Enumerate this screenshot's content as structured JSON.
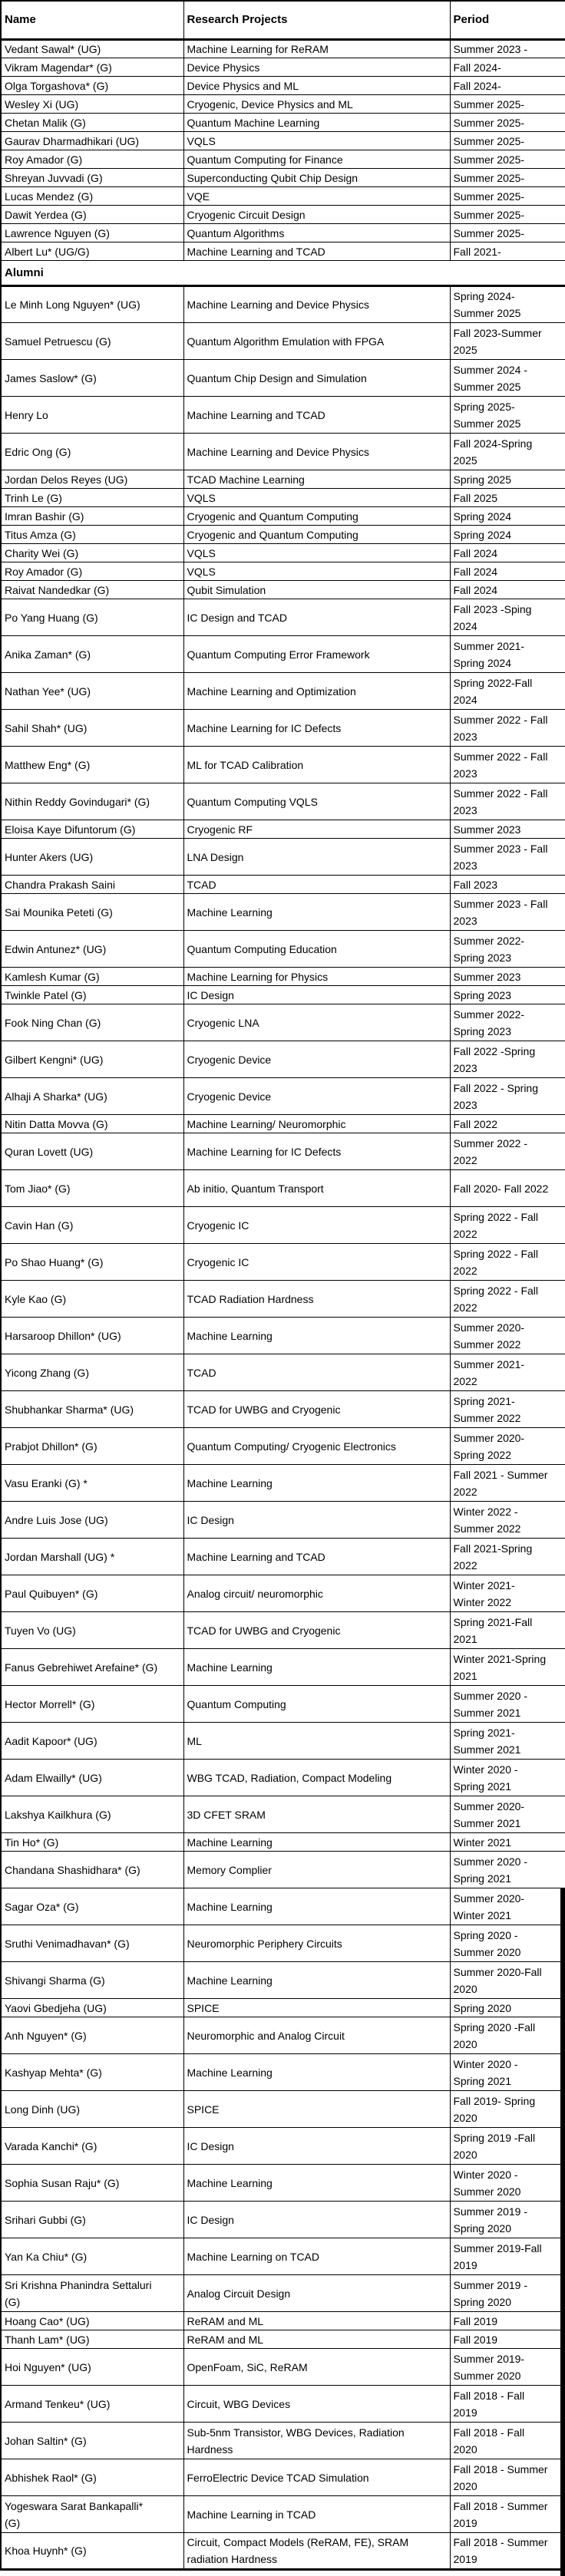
{
  "header": {
    "name": "Name",
    "projects": "Research Projects",
    "period": "Period"
  },
  "section_label": "Alumni",
  "colors": {
    "text": "#000000",
    "muted": "#595959",
    "border": "#000000",
    "edge_bar": "#000000"
  },
  "current_members": [
    {
      "name": "Vedant Sawal* (UG)",
      "project": "Machine Learning for ReRAM",
      "period": "Summer 2023 -"
    },
    {
      "name": "Vikram Magendar* (G)",
      "project": "Device Physics",
      "period": "Fall 2024-"
    },
    {
      "name": "Olga Torgashova* (G)",
      "project": "Device Physics and ML",
      "period": "Fall 2024-"
    },
    {
      "name": "Wesley Xi (UG)",
      "project": "Cryogenic, Device Physics and ML",
      "period": "Summer 2025-"
    },
    {
      "name": "Chetan Malik (G)",
      "project": "Quantum Machine Learning",
      "period": "Summer 2025-"
    },
    {
      "name": "Gaurav Dharmadhikari (UG)",
      "project": "VQLS",
      "period": "Summer 2025-"
    },
    {
      "name": "Roy Amador (G)",
      "project": "Quantum Computing for Finance",
      "period": "Summer 2025-"
    },
    {
      "name": "Shreyan Juvvadi (G)",
      "project": "Superconducting Qubit Chip Design",
      "period": "Summer 2025-"
    },
    {
      "name": "Lucas Mendez (G)",
      "project": "VQE",
      "period": "Summer 2025-"
    },
    {
      "name": "Dawit Yerdea (G)",
      "project": "Cryogenic Circuit Design",
      "period": "Summer 2025-"
    },
    {
      "name": "Lawrence Nguyen (G)",
      "project": "Quantum Algorithms",
      "period": "Summer 2025-"
    },
    {
      "name": "Albert Lu* (UG/G)",
      "project": "Machine Learning and TCAD",
      "period": "Fall 2021-"
    }
  ],
  "alumni": [
    {
      "name": "Le Minh Long Nguyen* (UG)",
      "project": "Machine Learning and Device Physics",
      "period": "Spring 2024-\nSummer 2025",
      "tall": true
    },
    {
      "name": "Samuel Petruescu (G)",
      "project": "Quantum Algorithm Emulation with FPGA",
      "period": "Fall 2023-Summer\n2025",
      "tall": true
    },
    {
      "name": "James Saslow* (G)",
      "project": "Quantum Chip Design and Simulation",
      "period": "Summer 2024 -\nSummer 2025",
      "tall": true
    },
    {
      "name": "Henry Lo",
      "project": "Machine Learning and TCAD",
      "period": "Spring 2025-\nSummer 2025",
      "tall": true
    },
    {
      "name": "Edric Ong (G)",
      "project": "Machine Learning and Device Physics",
      "period": "Fall 2024-Spring\n2025",
      "tall": true
    },
    {
      "name": "Jordan Delos Reyes (UG)",
      "project": "TCAD Machine Learning",
      "period": "Spring 2025"
    },
    {
      "name": "Trinh Le (G)",
      "project": "VQLS",
      "period": "Fall 2025"
    },
    {
      "name": "Imran Bashir (G)",
      "project": "Cryogenic and Quantum Computing",
      "period": "Spring 2024"
    },
    {
      "name": "Titus Amza (G)",
      "project": "Cryogenic and Quantum Computing",
      "period": "Spring 2024"
    },
    {
      "name": "Charity Wei (G)",
      "project": "VQLS",
      "period": "Fall 2024"
    },
    {
      "name": "Roy Amador  (G)",
      "project": "VQLS",
      "period": "Fall 2024"
    },
    {
      "name": "Raivat Nandedkar (G)",
      "project": "Qubit Simulation",
      "period": "Fall 2024"
    },
    {
      "name": "Po Yang Huang (G)",
      "project": "IC Design and TCAD",
      "period": "Fall 2023 -Sping\n2024",
      "tall": true
    },
    {
      "name": "Anika Zaman* (G)",
      "project": "Quantum Computing Error Framework",
      "period": "Summer 2021-\nSpring 2024",
      "tall": true
    },
    {
      "name": "Nathan Yee* (UG)",
      "project": "Machine Learning and Optimization",
      "period": "Spring 2022-Fall\n2024",
      "tall": true
    },
    {
      "name": "Sahil Shah* (UG)",
      "project": "Machine Learning for IC Defects",
      "period": "Summer 2022 - Fall\n2023",
      "tall": true
    },
    {
      "name": "Matthew Eng* (G)",
      "project": "ML for TCAD Calibration",
      "period": "Summer 2022 - Fall\n2023",
      "tall": true
    },
    {
      "name": "Nithin Reddy Govindugari* (G)",
      "project": "Quantum Computing VQLS",
      "period": "Summer 2022 - Fall\n2023",
      "tall": true
    },
    {
      "name": "Eloisa Kaye Difuntorum (G)",
      "project": "Cryogenic RF",
      "period": "Summer 2023"
    },
    {
      "name": "Hunter Akers (UG)",
      "project": "LNA Design",
      "period": "Summer 2023 - Fall\n2023",
      "tall": true
    },
    {
      "name": "Chandra Prakash Saini",
      "project": "TCAD",
      "period": "Fall 2023"
    },
    {
      "name": "Sai Mounika Peteti (G)",
      "project": "Machine Learning",
      "period": "Summer 2023 - Fall\n2023",
      "tall": true
    },
    {
      "name": "Edwin Antunez* (UG)",
      "project": "Quantum Computing Education",
      "period": "Summer 2022-\nSpring 2023",
      "tall": true
    },
    {
      "name": "Kamlesh Kumar (G)",
      "project": "Machine Learning for Physics",
      "period": "Summer 2023"
    },
    {
      "name": "Twinkle Patel (G)",
      "project": "IC Design",
      "period": "Spring 2023"
    },
    {
      "name": "Fook Ning Chan (G)",
      "project": "Cryogenic LNA",
      "period": "Summer 2022-\nSpring 2023",
      "tall": true
    },
    {
      "name": "Gilbert Kengni* (UG)",
      "project": "Cryogenic Device",
      "period": "Fall 2022 -Spring\n2023",
      "tall": true
    },
    {
      "name": "Alhaji A Sharka* (UG)",
      "project": "Cryogenic Device",
      "period": "Fall 2022 - Spring\n2023",
      "tall": true
    },
    {
      "name": "Nitin Datta Movva (G)",
      "project": "Machine Learning/ Neuromorphic",
      "period": "Fall 2022"
    },
    {
      "name": "Quran Lovett (UG)",
      "project": "Machine Learning for IC Defects",
      "period": "Summer 2022 -\n2022",
      "tall": true
    },
    {
      "name": "Tom Jiao* (G)",
      "project": "Ab initio, Quantum Transport",
      "period": "Fall 2020- Fall 2022",
      "tall": true
    },
    {
      "name": "Cavin Han (G)",
      "project": "Cryogenic IC",
      "period": "Spring 2022 - Fall\n2022",
      "tall": true
    },
    {
      "name": "Po Shao Huang* (G)",
      "project": "Cryogenic IC",
      "period": "Spring 2022 - Fall\n2022",
      "tall": true
    },
    {
      "name": "Kyle Kao (G)",
      "project": "TCAD Radiation Hardness",
      "period": "Spring 2022 - Fall\n2022",
      "tall": true
    },
    {
      "name": "Harsaroop Dhillon* (UG)",
      "project": "Machine Learning",
      "period": "Summer 2020-\nSummer 2022",
      "tall": true
    },
    {
      "name": "Yicong Zhang (G)",
      "project": "TCAD",
      "period": "Summer 2021-\n2022",
      "tall": true
    },
    {
      "name": "Shubhankar Sharma* (UG)",
      "project": "TCAD for UWBG and Cryogenic",
      "period": "Spring 2021-\nSummer 2022",
      "tall": true
    },
    {
      "name": "Prabjot Dhillon* (G)",
      "project": "Quantum Computing/ Cryogenic Electronics",
      "period": "Summer 2020-\nSpring 2022",
      "tall": true
    },
    {
      "name": "Vasu Eranki (G) *",
      "project": "Machine Learning",
      "period": "Fall 2021 - Summer\n2022",
      "tall": true
    },
    {
      "name": "Andre Luis Jose (UG)",
      "project": "IC Design",
      "period": "Winter 2022 -\nSummer 2022",
      "tall": true
    },
    {
      "name": "Jordan Marshall (UG) *",
      "project": "Machine Learning and TCAD",
      "period": "Fall 2021-Spring\n2022",
      "tall": true
    },
    {
      "name": "Paul Quibuyen* (G)",
      "project": "Analog circuit/ neuromorphic",
      "period": "Winter 2021-\nWinter 2022",
      "tall": true
    },
    {
      "name": "Tuyen Vo (UG)",
      "project": "TCAD for UWBG and Cryogenic",
      "period": "Spring 2021-Fall\n2021",
      "tall": true
    },
    {
      "name": "Fanus Gebrehiwet Arefaine* (G)",
      "project": "Machine Learning",
      "period": "Winter 2021-Spring\n2021",
      "tall": true
    },
    {
      "name": "Hector Morrell* (G)",
      "project": "Quantum Computing",
      "period": "Summer 2020 -\nSummer 2021",
      "tall": true
    },
    {
      "name": "Aadit Kapoor* (UG)",
      "project": "ML",
      "period": "Spring 2021-\nSummer 2021",
      "tall": true
    },
    {
      "name": "Adam Elwailly* (UG)",
      "project": "WBG TCAD, Radiation, Compact Modeling",
      "period": "Winter 2020 -\nSpring 2021",
      "tall": true
    },
    {
      "name": "Lakshya Kailkhura (G)",
      "project": "3D CFET SRAM",
      "period": "Summer 2020-\nSummer 2021",
      "tall": true
    },
    {
      "name": "Tin Ho* (G)",
      "project": "Machine Learning",
      "period": "Winter 2021"
    },
    {
      "name": "Chandana Shashidhara* (G)",
      "project": "Memory Complier",
      "period": "Summer 2020 -\nSpring 2021",
      "tall": true
    },
    {
      "name": "Sagar Oza* (G)",
      "project": "Machine Learning",
      "period": "Summer 2020-\nWinter 2021",
      "tall": true
    },
    {
      "name": "Sruthi Venimadhavan* (G)",
      "project": "Neuromorphic Periphery Circuits",
      "period": "Spring 2020 -\nSummer 2020",
      "tall": true
    },
    {
      "name": "Shivangi Sharma (G)",
      "project": "Machine Learning",
      "period": "Summer 2020-Fall\n2020",
      "tall": true
    },
    {
      "name": "Yaovi Gbedjeha (UG)",
      "project": "SPICE",
      "period": "Spring 2020"
    },
    {
      "name": "Anh Nguyen* (G)",
      "project": "Neuromorphic and Analog Circuit",
      "period": "Spring 2020 -Fall\n2020",
      "tall": true
    },
    {
      "name": "Kashyap Mehta* (G)",
      "project": "Machine Learning",
      "period": "Winter 2020 -\nSpring 2021",
      "tall": true
    },
    {
      "name": "Long Dinh (UG)",
      "project": "SPICE",
      "period": "Fall 2019- Spring\n2020",
      "tall": true
    },
    {
      "name": "Varada Kanchi* (G)",
      "project": "IC Design",
      "period": "Spring 2019 -Fall\n2020",
      "tall": true
    },
    {
      "name": "Sophia Susan Raju* (G)",
      "project": "Machine Learning",
      "period": "Winter 2020 -\nSummer 2020",
      "tall": true
    },
    {
      "name": "Srihari Gubbi (G)",
      "project": "IC Design",
      "period": "Summer 2019 -\nSpring 2020",
      "tall": true,
      "muted": [
        "name",
        "project",
        "period"
      ]
    },
    {
      "name": "Yan Ka Chiu* (G)",
      "project": "Machine Learning on TCAD",
      "period": "Summer 2019-Fall\n2019",
      "tall": true,
      "muted": [
        "period"
      ]
    },
    {
      "name": "Sri Krishna Phanindra Settaluri\n(G)",
      "project": "Analog Circuit Design",
      "period": "Summer 2019 -\nSpring 2020",
      "tall": true,
      "muted": [
        "period"
      ]
    },
    {
      "name": "Hoang Cao* (UG)",
      "project": "ReRAM and ML",
      "period": "Fall 2019",
      "muted": [
        "name",
        "project"
      ]
    },
    {
      "name": "Thanh Lam* (UG)",
      "project": "ReRAM and ML",
      "period": "Fall 2019",
      "muted": [
        "name",
        "project"
      ]
    },
    {
      "name": "Hoi Nguyen* (UG)",
      "project": "OpenFoam, SiC, ReRAM",
      "period": "Summer 2019-\nSummer 2020",
      "tall": true,
      "muted": [
        "name",
        "project"
      ]
    },
    {
      "name": "Armand Tenkeu* (UG)",
      "project": "Circuit, WBG Devices",
      "period": "Fall 2018 - Fall\n2019",
      "tall": true
    },
    {
      "name": "Johan Saltin* (G)",
      "project": "Sub-5nm Transistor, WBG Devices, Radiation\nHardness",
      "period": "Fall 2018 - Fall\n2020",
      "tall": true
    },
    {
      "name": "Abhishek Raol* (G)",
      "project": "FerroElectric Device TCAD Simulation",
      "period": "Fall 2018 - Summer\n2020",
      "tall": true,
      "muted": [
        "period"
      ]
    },
    {
      "name": "Yogeswara Sarat Bankapalli*\n(G)",
      "project": "Machine Learning in TCAD",
      "period": "Fall 2018 - Summer\n2019",
      "tall": true
    },
    {
      "name": "Khoa Huynh* (G)",
      "project": "Circuit, Compact Models (ReRAM, FE), SRAM\nradiation Hardness",
      "period": "Fall 2018 - Summer\n2019",
      "tall": true
    }
  ]
}
